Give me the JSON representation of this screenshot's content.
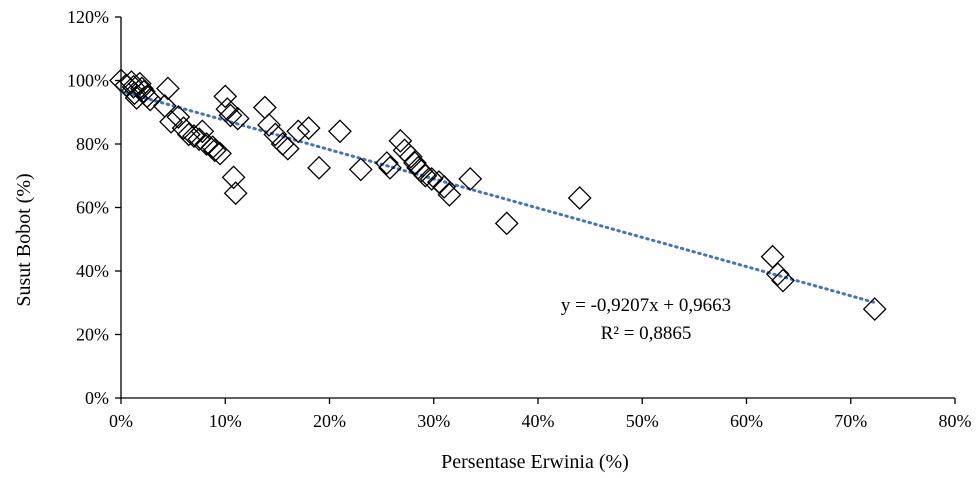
{
  "chart_data": {
    "type": "scatter",
    "title": "",
    "xlabel": "Persentase Erwinia (%)",
    "ylabel": "Susut Bobot (%)",
    "xlim": [
      0,
      0.8
    ],
    "ylim": [
      0,
      1.2
    ],
    "x_ticks": [
      0,
      0.1,
      0.2,
      0.3,
      0.4,
      0.5,
      0.6,
      0.7,
      0.8
    ],
    "x_tick_labels": [
      "0%",
      "10%",
      "20%",
      "30%",
      "40%",
      "50%",
      "60%",
      "70%",
      "80%"
    ],
    "y_ticks": [
      0,
      0.2,
      0.4,
      0.6,
      0.8,
      1.0,
      1.2
    ],
    "y_tick_labels": [
      "0%",
      "20%",
      "40%",
      "60%",
      "80%",
      "100%",
      "120%"
    ],
    "grid": false,
    "legend": "none",
    "marker": "diamond-open",
    "trendline": {
      "type": "linear",
      "slope": -0.9207,
      "intercept": 0.9663,
      "x_range": [
        0,
        0.723
      ],
      "color": "#4472c4",
      "style": "dotted"
    },
    "annotations": [
      "y = -0,9207x + 0,9663",
      "R² = 0,8865"
    ],
    "series": [
      {
        "points": [
          [
            0.0,
            1.0
          ],
          [
            0.005,
            0.985
          ],
          [
            0.01,
            0.995
          ],
          [
            0.012,
            0.98
          ],
          [
            0.013,
            0.96
          ],
          [
            0.015,
            0.945
          ],
          [
            0.018,
            0.99
          ],
          [
            0.02,
            0.975
          ],
          [
            0.022,
            0.965
          ],
          [
            0.025,
            0.95
          ],
          [
            0.028,
            0.94
          ],
          [
            0.042,
            0.92
          ],
          [
            0.045,
            0.975
          ],
          [
            0.048,
            0.87
          ],
          [
            0.055,
            0.885
          ],
          [
            0.06,
            0.85
          ],
          [
            0.065,
            0.83
          ],
          [
            0.07,
            0.825
          ],
          [
            0.075,
            0.815
          ],
          [
            0.078,
            0.84
          ],
          [
            0.082,
            0.8
          ],
          [
            0.088,
            0.79
          ],
          [
            0.09,
            0.78
          ],
          [
            0.095,
            0.77
          ],
          [
            0.1,
            0.95
          ],
          [
            0.102,
            0.91
          ],
          [
            0.105,
            0.89
          ],
          [
            0.108,
            0.695
          ],
          [
            0.11,
            0.645
          ],
          [
            0.112,
            0.88
          ],
          [
            0.138,
            0.915
          ],
          [
            0.142,
            0.86
          ],
          [
            0.148,
            0.83
          ],
          [
            0.155,
            0.8
          ],
          [
            0.16,
            0.785
          ],
          [
            0.17,
            0.84
          ],
          [
            0.18,
            0.85
          ],
          [
            0.19,
            0.725
          ],
          [
            0.21,
            0.84
          ],
          [
            0.23,
            0.72
          ],
          [
            0.255,
            0.74
          ],
          [
            0.258,
            0.725
          ],
          [
            0.268,
            0.81
          ],
          [
            0.272,
            0.78
          ],
          [
            0.278,
            0.76
          ],
          [
            0.282,
            0.74
          ],
          [
            0.285,
            0.725
          ],
          [
            0.288,
            0.715
          ],
          [
            0.292,
            0.7
          ],
          [
            0.298,
            0.69
          ],
          [
            0.305,
            0.68
          ],
          [
            0.31,
            0.665
          ],
          [
            0.315,
            0.64
          ],
          [
            0.335,
            0.69
          ],
          [
            0.37,
            0.55
          ],
          [
            0.44,
            0.63
          ],
          [
            0.625,
            0.445
          ],
          [
            0.63,
            0.39
          ],
          [
            0.635,
            0.37
          ],
          [
            0.723,
            0.28
          ]
        ]
      }
    ]
  }
}
